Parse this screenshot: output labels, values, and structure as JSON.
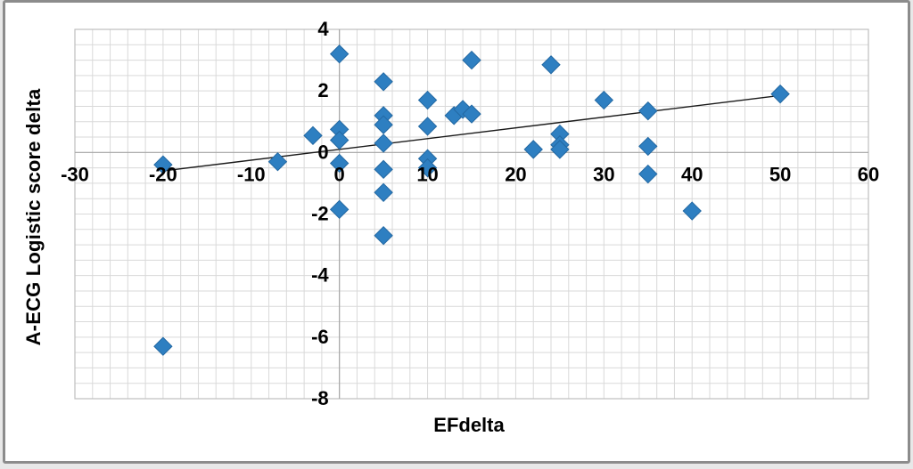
{
  "chart_data": {
    "type": "scatter",
    "title": "",
    "xlabel": "EFdelta",
    "ylabel": "A-ECG Logistic score delta",
    "xlim": [
      -30,
      60
    ],
    "ylim": [
      -8,
      4
    ],
    "x_ticks": [
      -30,
      -20,
      -10,
      0,
      10,
      20,
      30,
      40,
      50,
      60
    ],
    "y_ticks": [
      4,
      2,
      0,
      -2,
      -4,
      -6,
      -8
    ],
    "x_minor_step": 2,
    "y_minor_step": 0.5,
    "grid": true,
    "legend": "none",
    "marker": {
      "shape": "diamond",
      "color": "#2e7fc1",
      "edge_color": "#2368a2",
      "size": 10
    },
    "trendline": {
      "x1": -20,
      "y1": -0.6,
      "x2": 50,
      "y2": 1.85,
      "color": "#1a1a1a"
    },
    "points": [
      [
        -20,
        -0.4
      ],
      [
        -20,
        -6.3
      ],
      [
        -7,
        -0.3
      ],
      [
        -3,
        0.55
      ],
      [
        0,
        3.2
      ],
      [
        0,
        0.75
      ],
      [
        0,
        0.4
      ],
      [
        0,
        -0.35
      ],
      [
        0,
        -1.85
      ],
      [
        5,
        2.3
      ],
      [
        5,
        1.2
      ],
      [
        5,
        0.9
      ],
      [
        5,
        0.3
      ],
      [
        5,
        -0.55
      ],
      [
        5,
        -1.3
      ],
      [
        5,
        -2.7
      ],
      [
        10,
        1.7
      ],
      [
        10,
        0.85
      ],
      [
        10,
        -0.2
      ],
      [
        10,
        -0.5
      ],
      [
        13,
        1.2
      ],
      [
        14,
        1.4
      ],
      [
        15,
        3.0
      ],
      [
        15,
        1.25
      ],
      [
        22,
        0.1
      ],
      [
        24,
        2.85
      ],
      [
        25,
        0.6
      ],
      [
        25,
        0.25
      ],
      [
        25,
        0.1
      ],
      [
        30,
        1.7
      ],
      [
        35,
        1.35
      ],
      [
        35,
        0.2
      ],
      [
        35,
        -0.7
      ],
      [
        40,
        -1.9
      ],
      [
        50,
        1.9
      ]
    ],
    "colors": {
      "grid": "#d9d9d9",
      "plot_border": "#bfbfbf",
      "axis_line": "#a6a6a6",
      "tick_text": "#000000",
      "background": "#ffffff"
    }
  }
}
